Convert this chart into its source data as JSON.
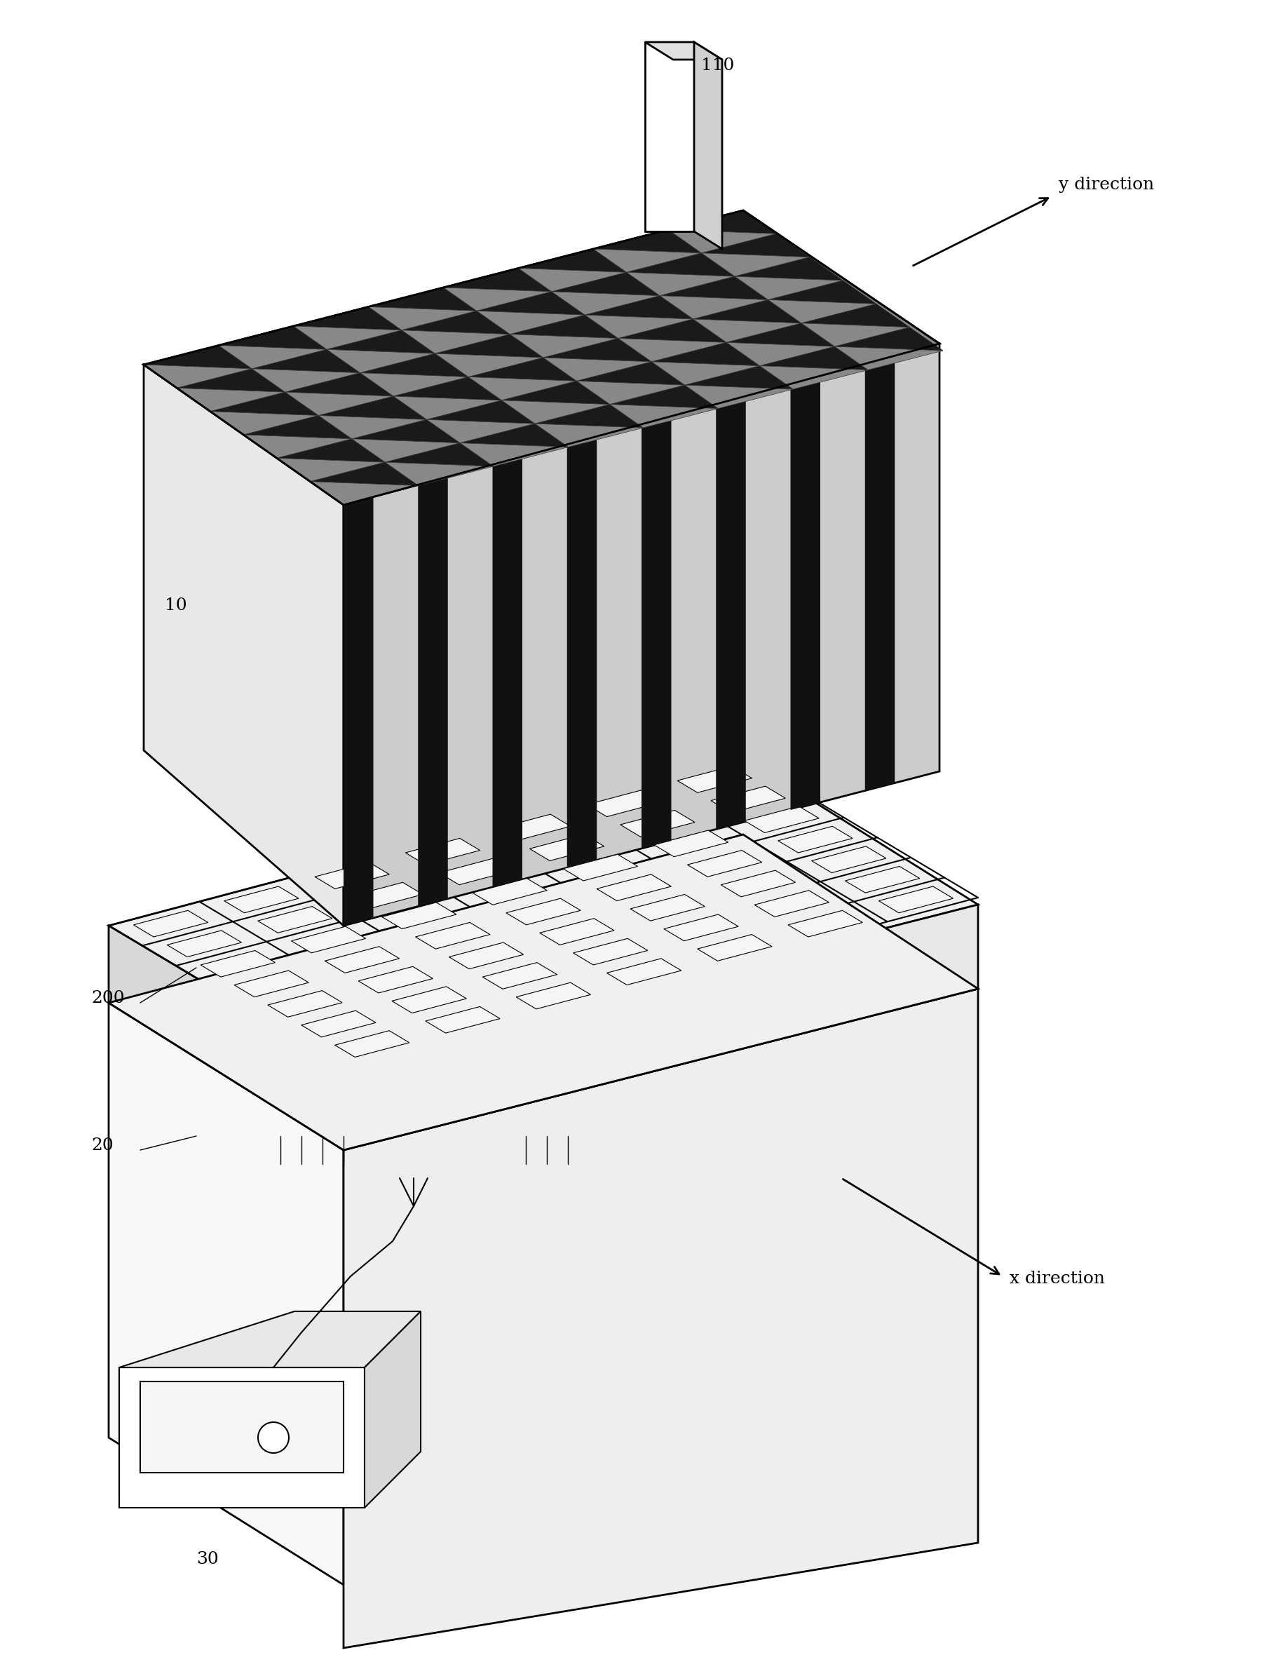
{
  "bg_color": "#ffffff",
  "line_color": "#000000",
  "label_10": "10",
  "label_20": "20",
  "label_30": "30",
  "label_110": "110",
  "label_200": "200",
  "label_x": "x direction",
  "label_y": "y direction",
  "font_size_labels": 18,
  "font_size_arrows": 16,
  "line_width": 1.5,
  "thick_line": 2.0
}
